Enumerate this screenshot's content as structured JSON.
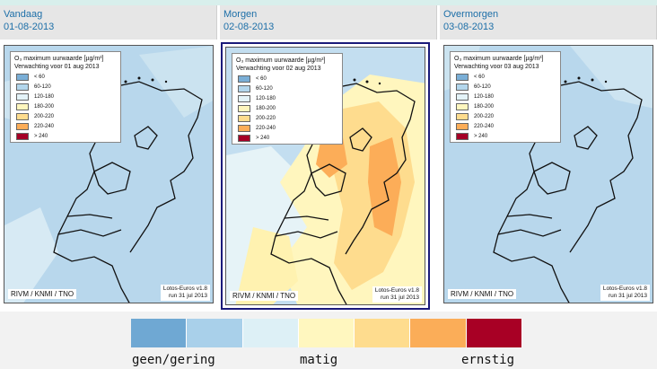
{
  "panels": [
    {
      "day": "Vandaag",
      "date": "01-08-2013",
      "legend_title": "O₃ maximum uurwaarde [µg/m³]",
      "legend_subtitle": "Verwachting voor 01 aug 2013",
      "credit": "RIVM / KNMI / TNO",
      "model_line1": "Lotos-Euros v1.8",
      "model_line2": "run 31 jul 2013"
    },
    {
      "day": "Morgen",
      "date": "02-08-2013",
      "legend_title": "O₃ maximum uurwaarde [µg/m³]",
      "legend_subtitle": "Verwachting voor 02 aug 2013",
      "credit": "RIVM / KNMI / TNO",
      "model_line1": "Lotos-Euros v1.8",
      "model_line2": "run 31 jul 2013"
    },
    {
      "day": "Overmorgen",
      "date": "03-08-2013",
      "legend_title": "O₃ maximum uurwaarde [µg/m³]",
      "legend_subtitle": "Verwachting voor 03 aug 2013",
      "credit": "RIVM / KNMI / TNO",
      "model_line1": "Lotos-Euros v1.8",
      "model_line2": "run 31 jul 2013"
    }
  ],
  "legend_classes": [
    {
      "label": "< 60",
      "color": "#7aaed6"
    },
    {
      "label": "60-120",
      "color": "#b3d6ec"
    },
    {
      "label": "120-180",
      "color": "#e4f3f8"
    },
    {
      "label": "180-200",
      "color": "#fff6be"
    },
    {
      "label": "200-220",
      "color": "#fedc8e"
    },
    {
      "label": "220-240",
      "color": "#fcad58"
    },
    {
      "label": "> 240",
      "color": "#a50026"
    }
  ],
  "scale": {
    "colors": [
      "#6fa8d3",
      "#a9d0ea",
      "#ddf0f6",
      "#fff7bf",
      "#fedc8e",
      "#fbad58",
      "#a80025"
    ],
    "labels": {
      "low": "geen/gering",
      "mid": "matig",
      "high": "ernstig"
    }
  }
}
